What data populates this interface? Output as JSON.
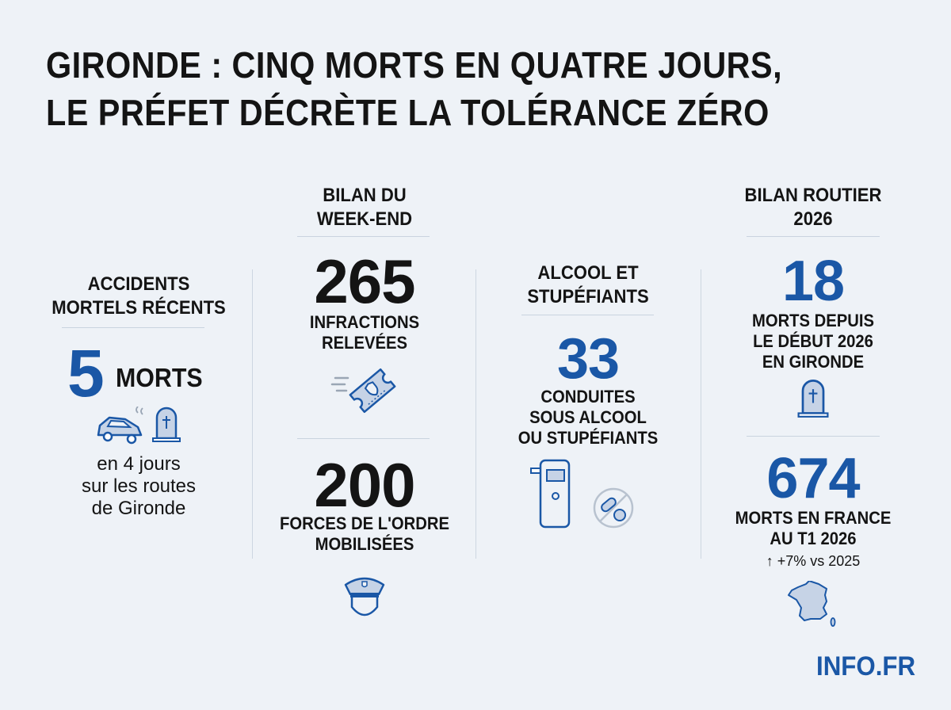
{
  "title": {
    "line1": "GIRONDE : CINQ MORTS EN QUATRE JOURS,",
    "line2": "LE PRÉFET DÉCRÈTE LA TOLÉRANCE ZÉRO"
  },
  "colors": {
    "accent": "#1a57a6",
    "text": "#141414",
    "background": "#eef2f7"
  },
  "accidents": {
    "heading_line1": "ACCIDENTS",
    "heading_line2": "MORTELS RÉCENTS",
    "value": "5",
    "unit": "MORTS",
    "icons": [
      "crashed-car-icon",
      "tombstone-icon"
    ],
    "desc_line1": "en 4 jours",
    "desc_line2": "sur les routes",
    "desc_line3": "de Gironde"
  },
  "weekend": {
    "heading_line1": "BILAN DU",
    "heading_line2": "WEEK-END",
    "infractions": {
      "value": "265",
      "label_line1": "INFRACTIONS",
      "label_line2": "RELEVÉES",
      "icon": "ticket-icon"
    },
    "forces": {
      "value": "200",
      "label_line1": "FORCES DE L'ORDRE",
      "label_line2": "MOBILISÉES",
      "icon": "police-officer-icon"
    }
  },
  "alcool": {
    "heading_line1": "ALCOOL ET",
    "heading_line2": "STUPÉFIANTS",
    "value": "33",
    "label_line1": "CONDUITES",
    "label_line2": "SOUS ALCOOL",
    "label_line3": "OU STUPÉFIANTS",
    "icons": [
      "breathalyzer-icon",
      "no-drugs-icon"
    ]
  },
  "bilan2026": {
    "heading_line1": "BILAN ROUTIER",
    "heading_line2": "2026",
    "gironde": {
      "value": "18",
      "label_line1": "MORTS DEPUIS",
      "label_line2": "LE DÉBUT 2026",
      "label_line3": "EN GIRONDE",
      "icon": "tombstone-icon"
    },
    "france": {
      "value": "674",
      "label_line1": "MORTS EN FRANCE",
      "label_line2": "AU T1 2026",
      "trend": "↑ +7% vs 2025",
      "icon": "france-map-icon"
    }
  },
  "brand": "INFO.FR"
}
